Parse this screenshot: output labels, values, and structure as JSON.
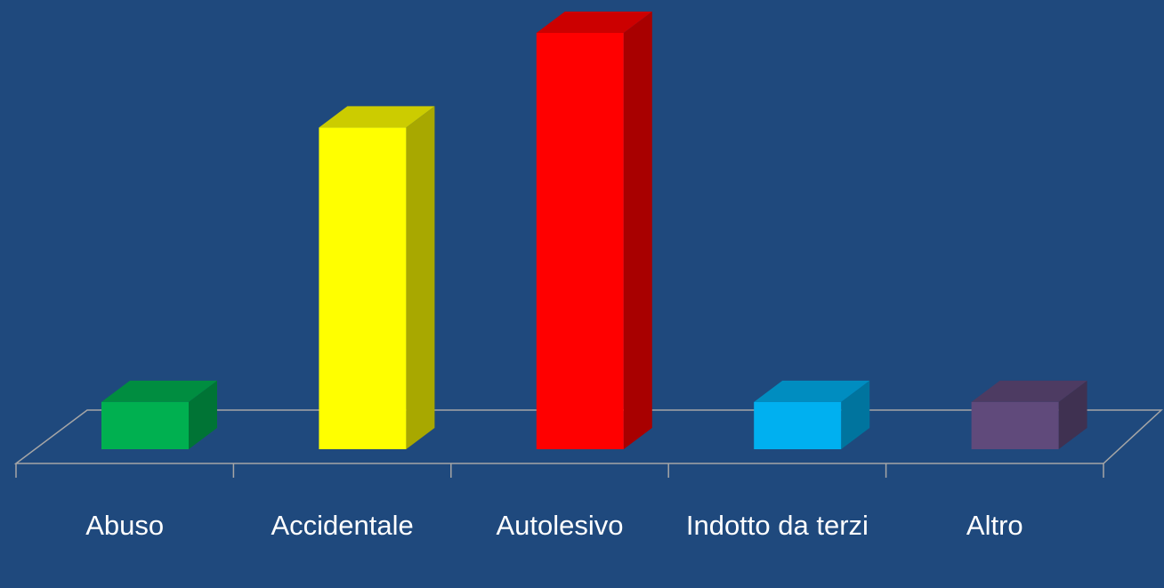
{
  "chart_data": {
    "type": "bar3d",
    "categories": [
      "Abuso",
      "Accidentale",
      "Autolesivo",
      "Indotto da terzi",
      "Altro"
    ],
    "values": [
      5,
      34,
      44,
      5,
      5
    ],
    "colors": [
      "#00b050",
      "#ffff00",
      "#ff0000",
      "#00b0f0",
      "#604a7b"
    ]
  }
}
